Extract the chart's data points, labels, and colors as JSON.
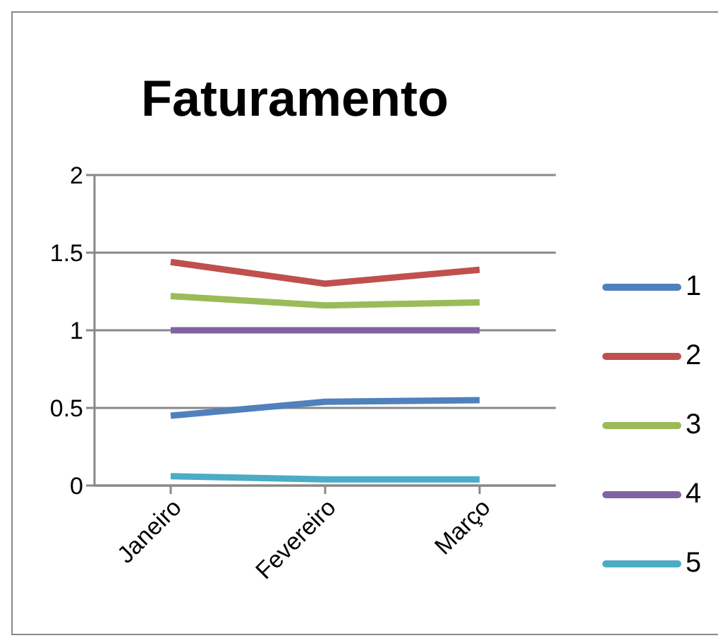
{
  "chart_data": {
    "type": "line",
    "title": "Faturamento",
    "categories": [
      "Janeiro",
      "Fevereiro",
      "Março"
    ],
    "series": [
      {
        "name": "1",
        "color": "#4f81bd",
        "values": [
          0.45,
          0.54,
          0.55
        ]
      },
      {
        "name": "2",
        "color": "#c0504d",
        "values": [
          1.44,
          1.3,
          1.39
        ]
      },
      {
        "name": "3",
        "color": "#9bbb59",
        "values": [
          1.22,
          1.16,
          1.18
        ]
      },
      {
        "name": "4",
        "color": "#8064a2",
        "values": [
          1,
          1,
          1
        ]
      },
      {
        "name": "5",
        "color": "#4bacc6",
        "values": [
          0.06,
          0.04,
          0.04
        ]
      }
    ],
    "ylim": [
      0,
      2
    ],
    "yticks": [
      0,
      0.5,
      1,
      1.5,
      2
    ],
    "grid": "y",
    "legend": "right",
    "marker": "none",
    "line_style": "solid"
  }
}
